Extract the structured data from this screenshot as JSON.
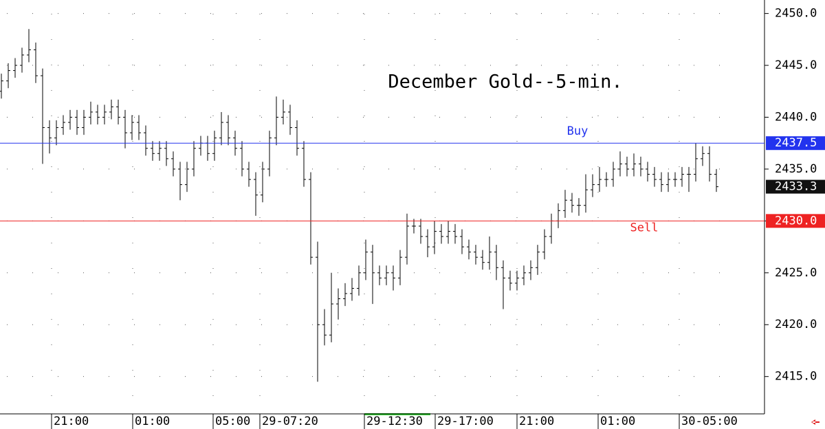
{
  "chart_data": {
    "type": "ohlc",
    "title": "December Gold--5-min.",
    "open": [
      2442.5,
      2443.5,
      2444.5,
      2445,
      2446,
      2446.5,
      2444,
      2439,
      2438,
      2439,
      2439.5,
      2440,
      2439,
      2440,
      2440.5,
      2440,
      2440.5,
      2441,
      2440,
      2438.5,
      2439.5,
      2438.5,
      2437,
      2436.5,
      2437,
      2436,
      2435,
      2433.5,
      2435,
      2437,
      2437.5,
      2436.5,
      2438,
      2439.5,
      2438,
      2437,
      2435,
      2434,
      2432.5,
      2435,
      2438,
      2440,
      2440.5,
      2439,
      2437,
      2434,
      2426.5,
      2420,
      2419,
      2422,
      2422.5,
      2423,
      2423.5,
      2425,
      2427,
      2425,
      2424.5,
      2425,
      2424.5,
      2426.5,
      2429.5,
      2429.5,
      2428.5,
      2427.5,
      2429,
      2428.5,
      2429,
      2428.5,
      2427.5,
      2427,
      2426.5,
      2426,
      2427,
      2425.5,
      2424.5,
      2424,
      2424.5,
      2425,
      2425.5,
      2427,
      2428.5,
      2430,
      2431,
      2432,
      2431.5,
      2431.5,
      2433,
      2433.5,
      2434,
      2434,
      2435,
      2435.5,
      2435,
      2435.5,
      2435,
      2434.5,
      2434,
      2433.5,
      2434,
      2434,
      2434.5,
      2434.5,
      2436,
      2436.5,
      2434.5
    ],
    "high": [
      2444.2,
      2445.2,
      2445.7,
      2446.7,
      2448.5,
      2447.2,
      2444.7,
      2439.7,
      2439.7,
      2440.2,
      2440.7,
      2440.7,
      2440.7,
      2441.5,
      2441.2,
      2441.2,
      2441.7,
      2441.7,
      2440.7,
      2440.2,
      2440.2,
      2439.2,
      2437.7,
      2437.7,
      2437.7,
      2436.7,
      2435.7,
      2435.7,
      2437.7,
      2438.2,
      2438.2,
      2438.7,
      2440.5,
      2440.2,
      2438.7,
      2437.7,
      2435.7,
      2434.7,
      2435.7,
      2438.7,
      2442,
      2441.7,
      2441.2,
      2439.7,
      2437.7,
      2434.7,
      2428,
      2421.5,
      2425,
      2423.5,
      2424,
      2424.5,
      2425.7,
      2428.2,
      2427.7,
      2425.7,
      2425.7,
      2425.7,
      2427.2,
      2430.7,
      2430.2,
      2430.2,
      2429.2,
      2430,
      2429.7,
      2430,
      2429.7,
      2429.2,
      2428.2,
      2427.7,
      2427.2,
      2428.5,
      2427.7,
      2426.2,
      2425.2,
      2425.2,
      2425.7,
      2426.2,
      2427.7,
      2429.2,
      2430.7,
      2431.7,
      2433,
      2432.7,
      2432.2,
      2434.5,
      2434.5,
      2435.2,
      2434.7,
      2435.7,
      2436.7,
      2436.2,
      2436.5,
      2436.2,
      2435.7,
      2435.2,
      2434.7,
      2434.7,
      2434.7,
      2435.2,
      2435.2,
      2437.5,
      2437.2,
      2437.2,
      2435
    ],
    "low": [
      2441.8,
      2442.8,
      2443.8,
      2444.3,
      2445.3,
      2443.3,
      2435.5,
      2436.5,
      2437.3,
      2438.3,
      2438.8,
      2438.3,
      2438.3,
      2439.3,
      2439.3,
      2439.3,
      2439.8,
      2439.3,
      2437,
      2437.8,
      2437.8,
      2436.3,
      2435.8,
      2435.8,
      2435.3,
      2434.3,
      2432,
      2432.8,
      2434.3,
      2436.3,
      2435.8,
      2435.8,
      2437.3,
      2437.3,
      2436.3,
      2434.3,
      2433.3,
      2430.5,
      2431.8,
      2434.3,
      2437.3,
      2439.3,
      2438.3,
      2436.3,
      2433.3,
      2425.8,
      2414.5,
      2418,
      2418.3,
      2420.5,
      2421.8,
      2422.3,
      2422.8,
      2424.3,
      2422,
      2423.8,
      2423.8,
      2423.3,
      2423.8,
      2425.8,
      2428.8,
      2427.8,
      2426.5,
      2426.8,
      2427.8,
      2427.8,
      2427.8,
      2426.8,
      2426.3,
      2425.8,
      2425.3,
      2425.3,
      2424.3,
      2421.5,
      2423.3,
      2423.3,
      2423.8,
      2424.3,
      2424.8,
      2426.3,
      2427.8,
      2429.3,
      2430.3,
      2430.8,
      2430.5,
      2430.8,
      2432.3,
      2432.8,
      2433.3,
      2433.3,
      2434.3,
      2434.3,
      2434.3,
      2434.3,
      2433.8,
      2433.3,
      2432.8,
      2432.8,
      2433.3,
      2433.3,
      2432.8,
      2433.8,
      2435.3,
      2433.8,
      2432.8
    ],
    "close": [
      2443.5,
      2444.5,
      2445,
      2446,
      2446.5,
      2444,
      2439,
      2438,
      2439,
      2439.5,
      2440,
      2439,
      2440,
      2440.5,
      2440,
      2440.5,
      2441,
      2440,
      2438.5,
      2439.5,
      2438.5,
      2437,
      2436.5,
      2437,
      2436,
      2435,
      2433.5,
      2435,
      2437,
      2437.5,
      2436.5,
      2438,
      2439.5,
      2438,
      2437,
      2435,
      2434,
      2432.5,
      2435,
      2438,
      2440,
      2440.5,
      2439,
      2437,
      2434,
      2426.5,
      2420,
      2419,
      2422,
      2422.5,
      2423,
      2423.5,
      2425,
      2427,
      2425,
      2424.5,
      2425,
      2424.5,
      2426.5,
      2429.5,
      2429.5,
      2428.5,
      2427.5,
      2429,
      2428.5,
      2429,
      2428.5,
      2427.5,
      2427,
      2426.5,
      2426,
      2427,
      2425.5,
      2424.5,
      2424,
      2424.5,
      2425,
      2425.5,
      2427,
      2428.5,
      2430,
      2431,
      2432,
      2431.5,
      2431.5,
      2433,
      2433.5,
      2434,
      2434,
      2435,
      2435.5,
      2435,
      2435.5,
      2435,
      2434.5,
      2434,
      2433.5,
      2434,
      2434,
      2434.5,
      2434.5,
      2436,
      2436.5,
      2434.5,
      2433.3
    ],
    "ylim": [
      2411.4,
      2451.3
    ],
    "yticks": [
      {
        "value": 2415,
        "label": "2415.0"
      },
      {
        "value": 2420,
        "label": "2420.0"
      },
      {
        "value": 2425,
        "label": "2425.0"
      },
      {
        "value": 2430,
        "label": "2430.0"
      },
      {
        "value": 2435,
        "label": "2435.0"
      },
      {
        "value": 2440,
        "label": "2440.0"
      },
      {
        "value": 2445,
        "label": "2445.0"
      },
      {
        "value": 2450,
        "label": "2450.0"
      }
    ],
    "xlim": [
      -0.2,
      111
    ],
    "xticks": [
      {
        "value": 7.3,
        "label": "21:00"
      },
      {
        "value": 19.1,
        "label": "01:00"
      },
      {
        "value": 30.8,
        "label": "05:00"
      },
      {
        "value": 37.6,
        "label": "29-07:20"
      },
      {
        "value": 52.8,
        "label": "29-12:30"
      },
      {
        "value": 63.1,
        "label": "29-17:00"
      },
      {
        "value": 75,
        "label": "21:00"
      },
      {
        "value": 86.8,
        "label": "01:00"
      },
      {
        "value": 98.6,
        "label": "30-05:00"
      }
    ],
    "grid": true,
    "levels": [
      {
        "name": "Buy",
        "value": 2437.5,
        "color": "#2233ee"
      },
      {
        "name": "Sell",
        "value": 2430,
        "value_label": "2430.0",
        "color": "#ee2222"
      }
    ],
    "last_price": 2433.3
  }
}
